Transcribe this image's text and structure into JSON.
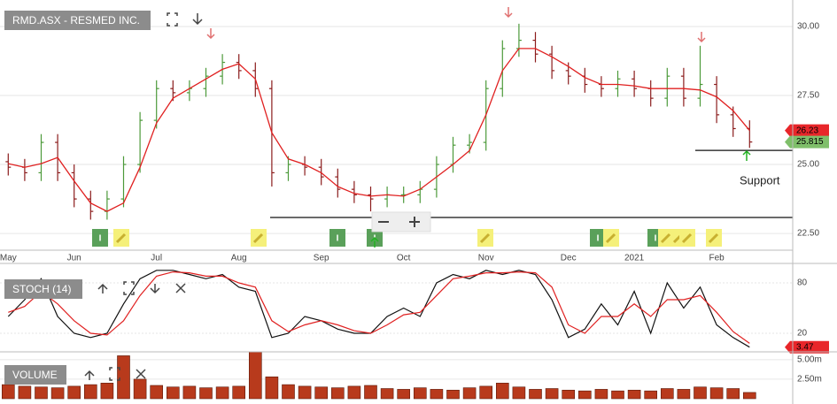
{
  "chart_data": [
    {
      "type": "ohlc",
      "title": "RMD.ASX - RESMED INC.",
      "categories": [
        "May",
        null,
        null,
        null,
        "Jun",
        null,
        null,
        null,
        null,
        "Jul",
        null,
        null,
        null,
        null,
        "Aug",
        null,
        null,
        null,
        null,
        "Sep",
        null,
        null,
        null,
        null,
        "Oct",
        null,
        null,
        null,
        null,
        "Nov",
        null,
        null,
        null,
        null,
        "Dec",
        null,
        null,
        null,
        "2021",
        null,
        null,
        null,
        null,
        "Feb",
        null,
        null
      ],
      "open": [
        25.1,
        24.9,
        24.7,
        25.8,
        24.7,
        23.75,
        23.3,
        23.75,
        25.0,
        26.6,
        27.75,
        27.6,
        27.75,
        28.2,
        28.7,
        28.4,
        27.75,
        24.7,
        25.0,
        24.9,
        24.55,
        24.1,
        23.9,
        23.75,
        23.9,
        23.9,
        24.1,
        25.0,
        25.7,
        25.8,
        27.75,
        29.2,
        29.5,
        29.0,
        28.4,
        28.2,
        27.9,
        27.75,
        28.1,
        27.75,
        27.4,
        28.2,
        27.4,
        27.9,
        26.8,
        26.3
      ],
      "high": [
        25.4,
        25.2,
        26.1,
        26.1,
        25.0,
        24.05,
        24.05,
        25.3,
        26.9,
        28.05,
        28.05,
        28.05,
        28.5,
        29.0,
        29.0,
        28.7,
        28.05,
        25.3,
        25.3,
        25.2,
        24.85,
        24.4,
        24.2,
        24.2,
        24.2,
        24.4,
        25.3,
        26.0,
        26.1,
        28.05,
        29.5,
        30.1,
        29.8,
        29.3,
        28.7,
        28.5,
        28.2,
        28.4,
        28.4,
        28.05,
        28.5,
        28.5,
        29.3,
        28.2,
        27.1,
        26.6
      ],
      "low": [
        24.6,
        24.4,
        24.4,
        24.4,
        23.45,
        23.0,
        23.0,
        23.45,
        24.7,
        26.3,
        27.3,
        27.3,
        27.45,
        27.9,
        28.1,
        27.45,
        24.2,
        24.4,
        24.6,
        24.25,
        23.8,
        23.6,
        23.3,
        23.45,
        23.6,
        23.6,
        23.8,
        24.7,
        25.4,
        25.5,
        27.45,
        28.9,
        28.7,
        28.1,
        27.9,
        27.6,
        27.45,
        27.45,
        27.45,
        27.1,
        27.1,
        27.1,
        27.1,
        26.5,
        26.0,
        25.6
      ],
      "close": [
        24.9,
        24.7,
        25.8,
        24.7,
        23.75,
        23.3,
        23.75,
        25.0,
        26.6,
        27.75,
        27.6,
        27.75,
        28.2,
        28.7,
        28.4,
        27.75,
        24.7,
        25.0,
        24.9,
        24.55,
        24.1,
        23.9,
        23.75,
        23.9,
        23.9,
        24.1,
        25.0,
        25.7,
        25.8,
        27.75,
        29.2,
        29.5,
        29.0,
        28.4,
        28.2,
        27.9,
        27.75,
        28.1,
        27.75,
        27.4,
        28.2,
        27.4,
        27.9,
        26.8,
        26.3,
        25.815
      ],
      "up_color": "#4c9a3a",
      "down_color": "#8b1c1c",
      "ma": {
        "color": "#e02020",
        "values": [
          25.03,
          24.9,
          25.03,
          25.25,
          24.4,
          23.6,
          23.3,
          23.6,
          24.9,
          26.5,
          27.4,
          27.75,
          28.1,
          28.45,
          28.65,
          28.1,
          26.15,
          25.2,
          25.0,
          24.7,
          24.2,
          23.95,
          23.85,
          23.9,
          23.85,
          24.1,
          24.55,
          25.0,
          25.5,
          26.8,
          28.4,
          29.2,
          29.2,
          28.9,
          28.55,
          28.15,
          27.9,
          27.9,
          27.85,
          27.75,
          27.75,
          27.75,
          27.7,
          27.45,
          26.95,
          26.23
        ]
      },
      "ylim": [
        21.99,
        30.96
      ],
      "yticks": [
        {
          "value": 22.5,
          "label": "22.50"
        },
        {
          "value": 25,
          "label": "25.00"
        },
        {
          "value": 27.5,
          "label": "27.50"
        },
        {
          "value": 30,
          "label": "30.00"
        }
      ],
      "grid": true,
      "support_levels": [
        23.08,
        25.51
      ],
      "annotation": "Support",
      "event_label": "I"
    },
    {
      "type": "line",
      "title": "STOCH (14)",
      "series": [
        {
          "color": "#111111",
          "values": [
            40,
            60,
            85,
            40,
            20,
            15,
            20,
            55,
            85,
            95,
            95,
            90,
            85,
            90,
            75,
            70,
            15,
            20,
            40,
            35,
            25,
            20,
            20,
            40,
            50,
            40,
            80,
            90,
            85,
            95,
            90,
            95,
            90,
            60,
            15,
            25,
            55,
            30,
            70,
            20,
            80,
            50,
            75,
            30,
            15,
            3.47
          ]
        },
        {
          "color": "#e02020",
          "values": [
            45,
            52,
            70,
            55,
            35,
            20,
            18,
            35,
            65,
            88,
            93,
            92,
            88,
            88,
            80,
            75,
            35,
            22,
            30,
            35,
            30,
            23,
            20,
            30,
            42,
            45,
            65,
            85,
            88,
            92,
            92,
            93,
            92,
            75,
            30,
            20,
            40,
            40,
            55,
            40,
            60,
            60,
            65,
            45,
            22,
            8
          ]
        }
      ],
      "ylim": [
        0,
        100
      ],
      "yticks": [
        20,
        80
      ],
      "grid": true
    },
    {
      "type": "bar",
      "title": "VOLUME",
      "color": "#b83a1c",
      "values": [
        1800000,
        1600000,
        1500000,
        1400000,
        1600000,
        1800000,
        2000000,
        5500000,
        2500000,
        1700000,
        1500000,
        1600000,
        1400000,
        1500000,
        1600000,
        6000000,
        2800000,
        1800000,
        1600000,
        1500000,
        1400000,
        1600000,
        1700000,
        1300000,
        1200000,
        1400000,
        1200000,
        1100000,
        1400000,
        1600000,
        2000000,
        1500000,
        1200000,
        1300000,
        1100000,
        1000000,
        1200000,
        1000000,
        1100000,
        1000000,
        1300000,
        1200000,
        1500000,
        1400000,
        1300000,
        800000
      ],
      "ylim": [
        0,
        6000000
      ],
      "yticks": [
        {
          "value": 2500000,
          "label": "2.50m"
        },
        {
          "value": 5000000,
          "label": "5.00m"
        }
      ]
    }
  ]
}
